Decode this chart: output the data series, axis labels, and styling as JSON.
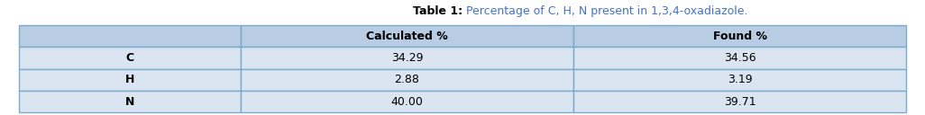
{
  "title_bold": "Table 1:",
  "title_normal": " Percentage of C, H, N present in 1,3,4-oxadiazole.",
  "col_headers": [
    "",
    "Calculated %",
    "Found %"
  ],
  "rows": [
    [
      "C",
      "34.29",
      "34.56"
    ],
    [
      "H",
      "2.88",
      "3.19"
    ],
    [
      "N",
      "40.00",
      "39.71"
    ]
  ],
  "header_bg": "#b8cce4",
  "row_bg": "#dbe5f1",
  "border_color": "#7aaacc",
  "text_color_black": "#000000",
  "title_color_bold": "#000000",
  "title_color_normal": "#4472c4",
  "header_fontsize": 9,
  "cell_fontsize": 9,
  "title_fontsize": 9
}
